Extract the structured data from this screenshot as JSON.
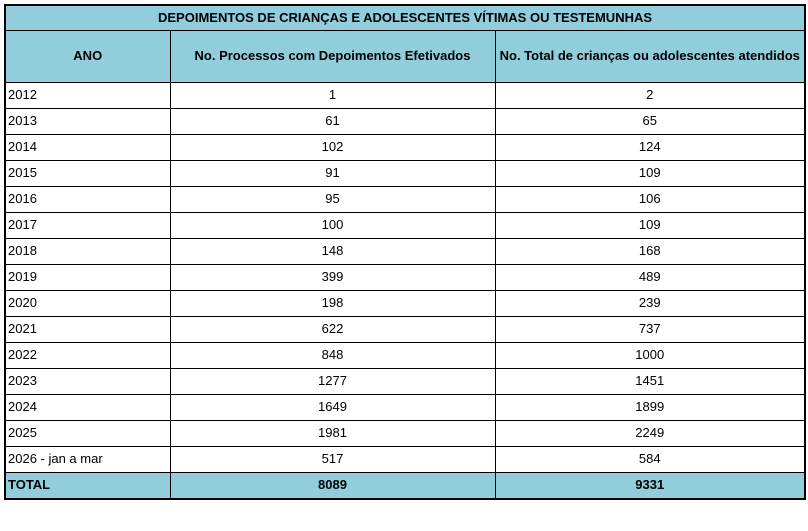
{
  "title": "DEPOIMENTOS DE CRIANÇAS E ADOLESCENTES VÍTIMAS OU TESTEMUNHAS",
  "colors": {
    "header_bg": "#92CDDC",
    "border": "#000000",
    "text": "#000000",
    "row_bg": "#FFFFFF"
  },
  "table": {
    "columns": [
      "ANO",
      "No. Processos com Depoimentos Efetivados",
      "No. Total de crianças ou adolescentes atendidos"
    ],
    "rows": [
      {
        "year": "2012",
        "processos": "1",
        "atendidos": "2"
      },
      {
        "year": "2013",
        "processos": "61",
        "atendidos": "65"
      },
      {
        "year": "2014",
        "processos": "102",
        "atendidos": "124"
      },
      {
        "year": "2015",
        "processos": "91",
        "atendidos": "109"
      },
      {
        "year": "2016",
        "processos": "95",
        "atendidos": "106"
      },
      {
        "year": "2017",
        "processos": "100",
        "atendidos": "109"
      },
      {
        "year": "2018",
        "processos": "148",
        "atendidos": "168"
      },
      {
        "year": "2019",
        "processos": "399",
        "atendidos": "489"
      },
      {
        "year": "2020",
        "processos": "198",
        "atendidos": "239"
      },
      {
        "year": "2021",
        "processos": "622",
        "atendidos": "737"
      },
      {
        "year": "2022",
        "processos": "848",
        "atendidos": "1000"
      },
      {
        "year": "2023",
        "processos": "1277",
        "atendidos": "1451"
      },
      {
        "year": "2024",
        "processos": "1649",
        "atendidos": "1899"
      },
      {
        "year": "2025",
        "processos": "1981",
        "atendidos": "2249"
      },
      {
        "year": "2026 - jan a mar",
        "processos": "517",
        "atendidos": "584"
      }
    ],
    "total": {
      "label": "TOTAL",
      "processos": "8089",
      "atendidos": "9331"
    }
  },
  "chart_data": {
    "type": "table",
    "title": "DEPOIMENTOS DE CRIANÇAS E ADOLESCENTES VÍTIMAS OU TESTEMUNHAS",
    "categories": [
      "2012",
      "2013",
      "2014",
      "2015",
      "2016",
      "2017",
      "2018",
      "2019",
      "2020",
      "2021",
      "2022",
      "2023",
      "2024",
      "2025",
      "2026 - jan a mar"
    ],
    "series": [
      {
        "name": "No. Processos com Depoimentos Efetivados",
        "values": [
          1,
          61,
          102,
          91,
          95,
          100,
          148,
          399,
          198,
          622,
          848,
          1277,
          1649,
          1981,
          517
        ],
        "total": 8089
      },
      {
        "name": "No. Total de crianças ou adolescentes atendidos",
        "values": [
          2,
          65,
          124,
          109,
          106,
          109,
          168,
          489,
          239,
          737,
          1000,
          1451,
          1899,
          2249,
          584
        ],
        "total": 9331
      }
    ]
  }
}
